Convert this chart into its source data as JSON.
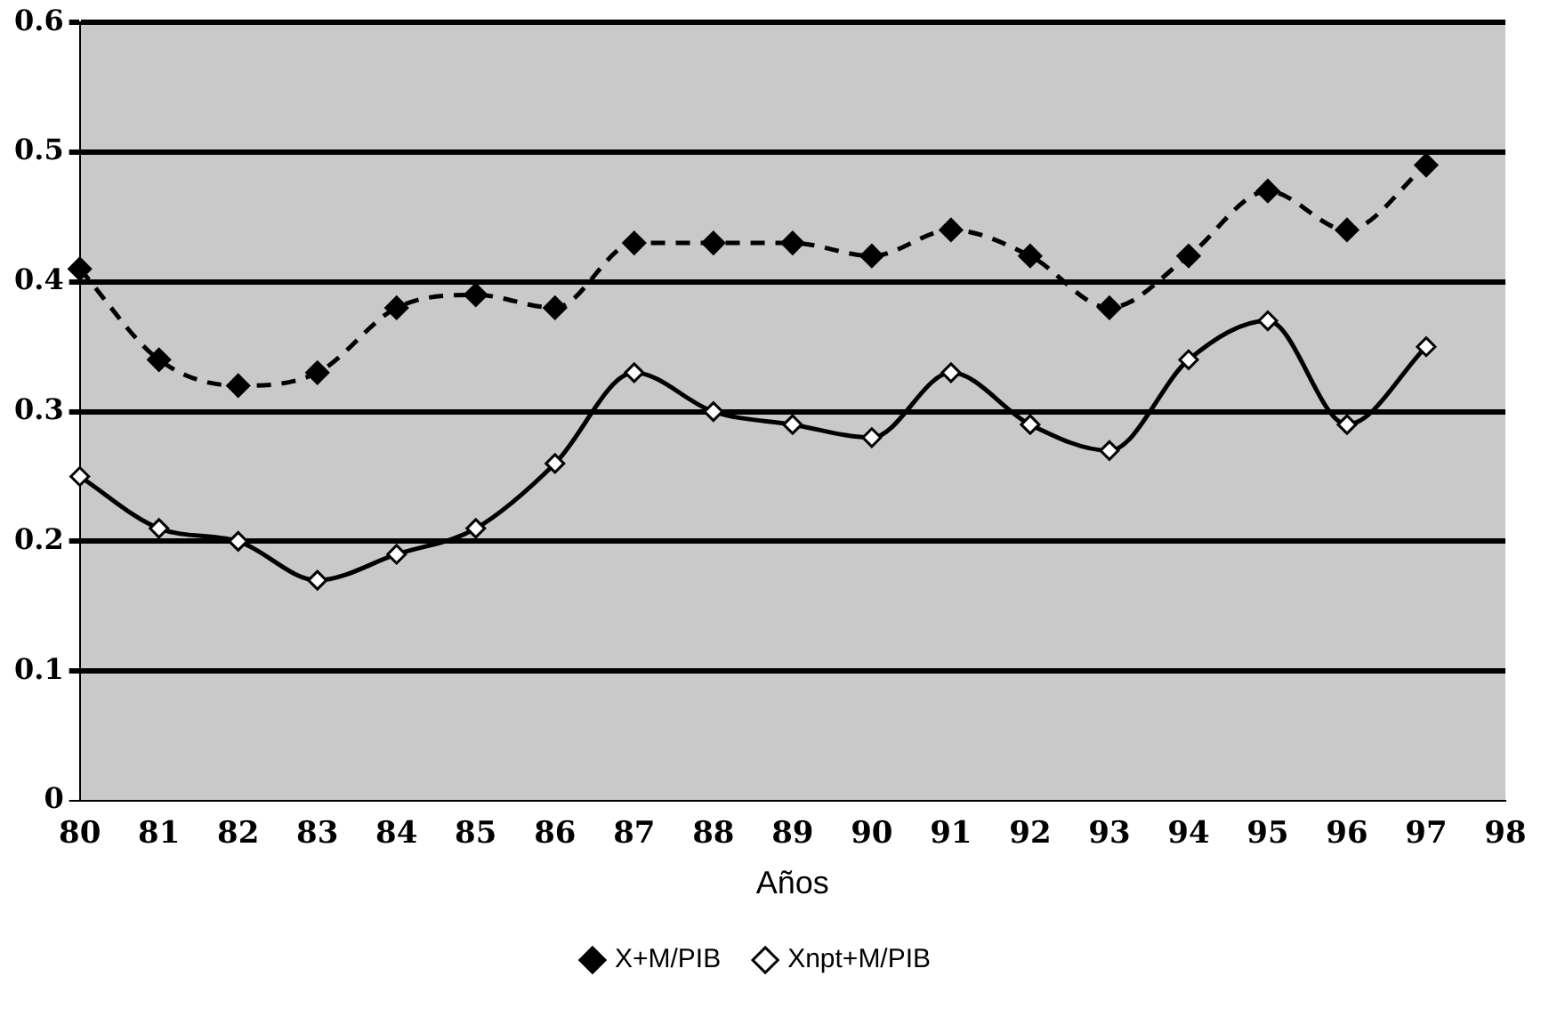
{
  "chart_data": {
    "type": "line",
    "xlabel": "Años",
    "categories": [
      "80",
      "81",
      "82",
      "83",
      "84",
      "85",
      "86",
      "87",
      "88",
      "89",
      "90",
      "91",
      "92",
      "93",
      "94",
      "95",
      "96",
      "97",
      "98"
    ],
    "series": [
      {
        "name": "X+M/PIB",
        "color": "#000000",
        "line_style": "dashed",
        "values": [
          0.41,
          0.34,
          0.32,
          0.33,
          0.38,
          0.39,
          0.38,
          0.43,
          0.43,
          0.43,
          0.42,
          0.44,
          0.42,
          0.38,
          0.42,
          0.47,
          0.44,
          0.49,
          null
        ]
      },
      {
        "name": "Xnpt+M/PIB",
        "color": "#000000",
        "line_style": "solid",
        "values": [
          0.25,
          0.21,
          0.2,
          0.17,
          0.19,
          0.21,
          0.26,
          0.33,
          0.3,
          0.29,
          0.28,
          0.33,
          0.29,
          0.27,
          0.34,
          0.37,
          0.29,
          0.35,
          null
        ]
      }
    ],
    "ylim": [
      0,
      0.6
    ],
    "yticks": [
      0,
      0.1,
      0.2,
      0.3,
      0.4,
      0.5,
      0.6
    ],
    "grid": "y",
    "legend": "bottom",
    "marker": "diamond"
  }
}
